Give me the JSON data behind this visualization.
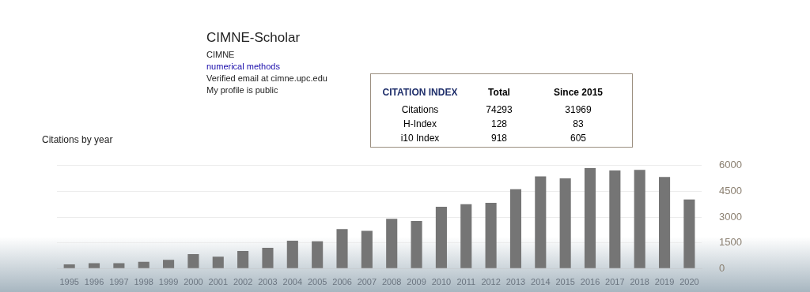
{
  "chart_data": {
    "type": "bar",
    "title": "Citations by year",
    "categories": [
      "1995",
      "1996",
      "1997",
      "1998",
      "1999",
      "2000",
      "2001",
      "2002",
      "2003",
      "2004",
      "2005",
      "2006",
      "2007",
      "2008",
      "2009",
      "2010",
      "2011",
      "2012",
      "2013",
      "2014",
      "2015",
      "2016",
      "2017",
      "2018",
      "2019",
      "2020"
    ],
    "values": [
      240,
      310,
      310,
      390,
      500,
      840,
      690,
      1025,
      1210,
      1625,
      1590,
      2300,
      2190,
      2900,
      2775,
      3600,
      3750,
      3830,
      4620,
      5370,
      5260,
      5850,
      5710,
      5750,
      5330,
      4020
    ],
    "color": "#757575",
    "ylim": [
      0,
      6000
    ],
    "yticks": [
      0,
      1500,
      3000,
      4500,
      6000
    ],
    "grid": "y",
    "legend": false,
    "annotations": [
      "CIMNE-Scholar",
      "CIMNE",
      "numerical methods",
      "Verified email at cimne.upc.edu",
      "My profile is public",
      "CITATION INDEX",
      "Total",
      "Since 2015",
      "Citations",
      "74293",
      "31969",
      "H-Index",
      "128",
      "83",
      "i10 Index",
      "918",
      "605"
    ]
  }
}
